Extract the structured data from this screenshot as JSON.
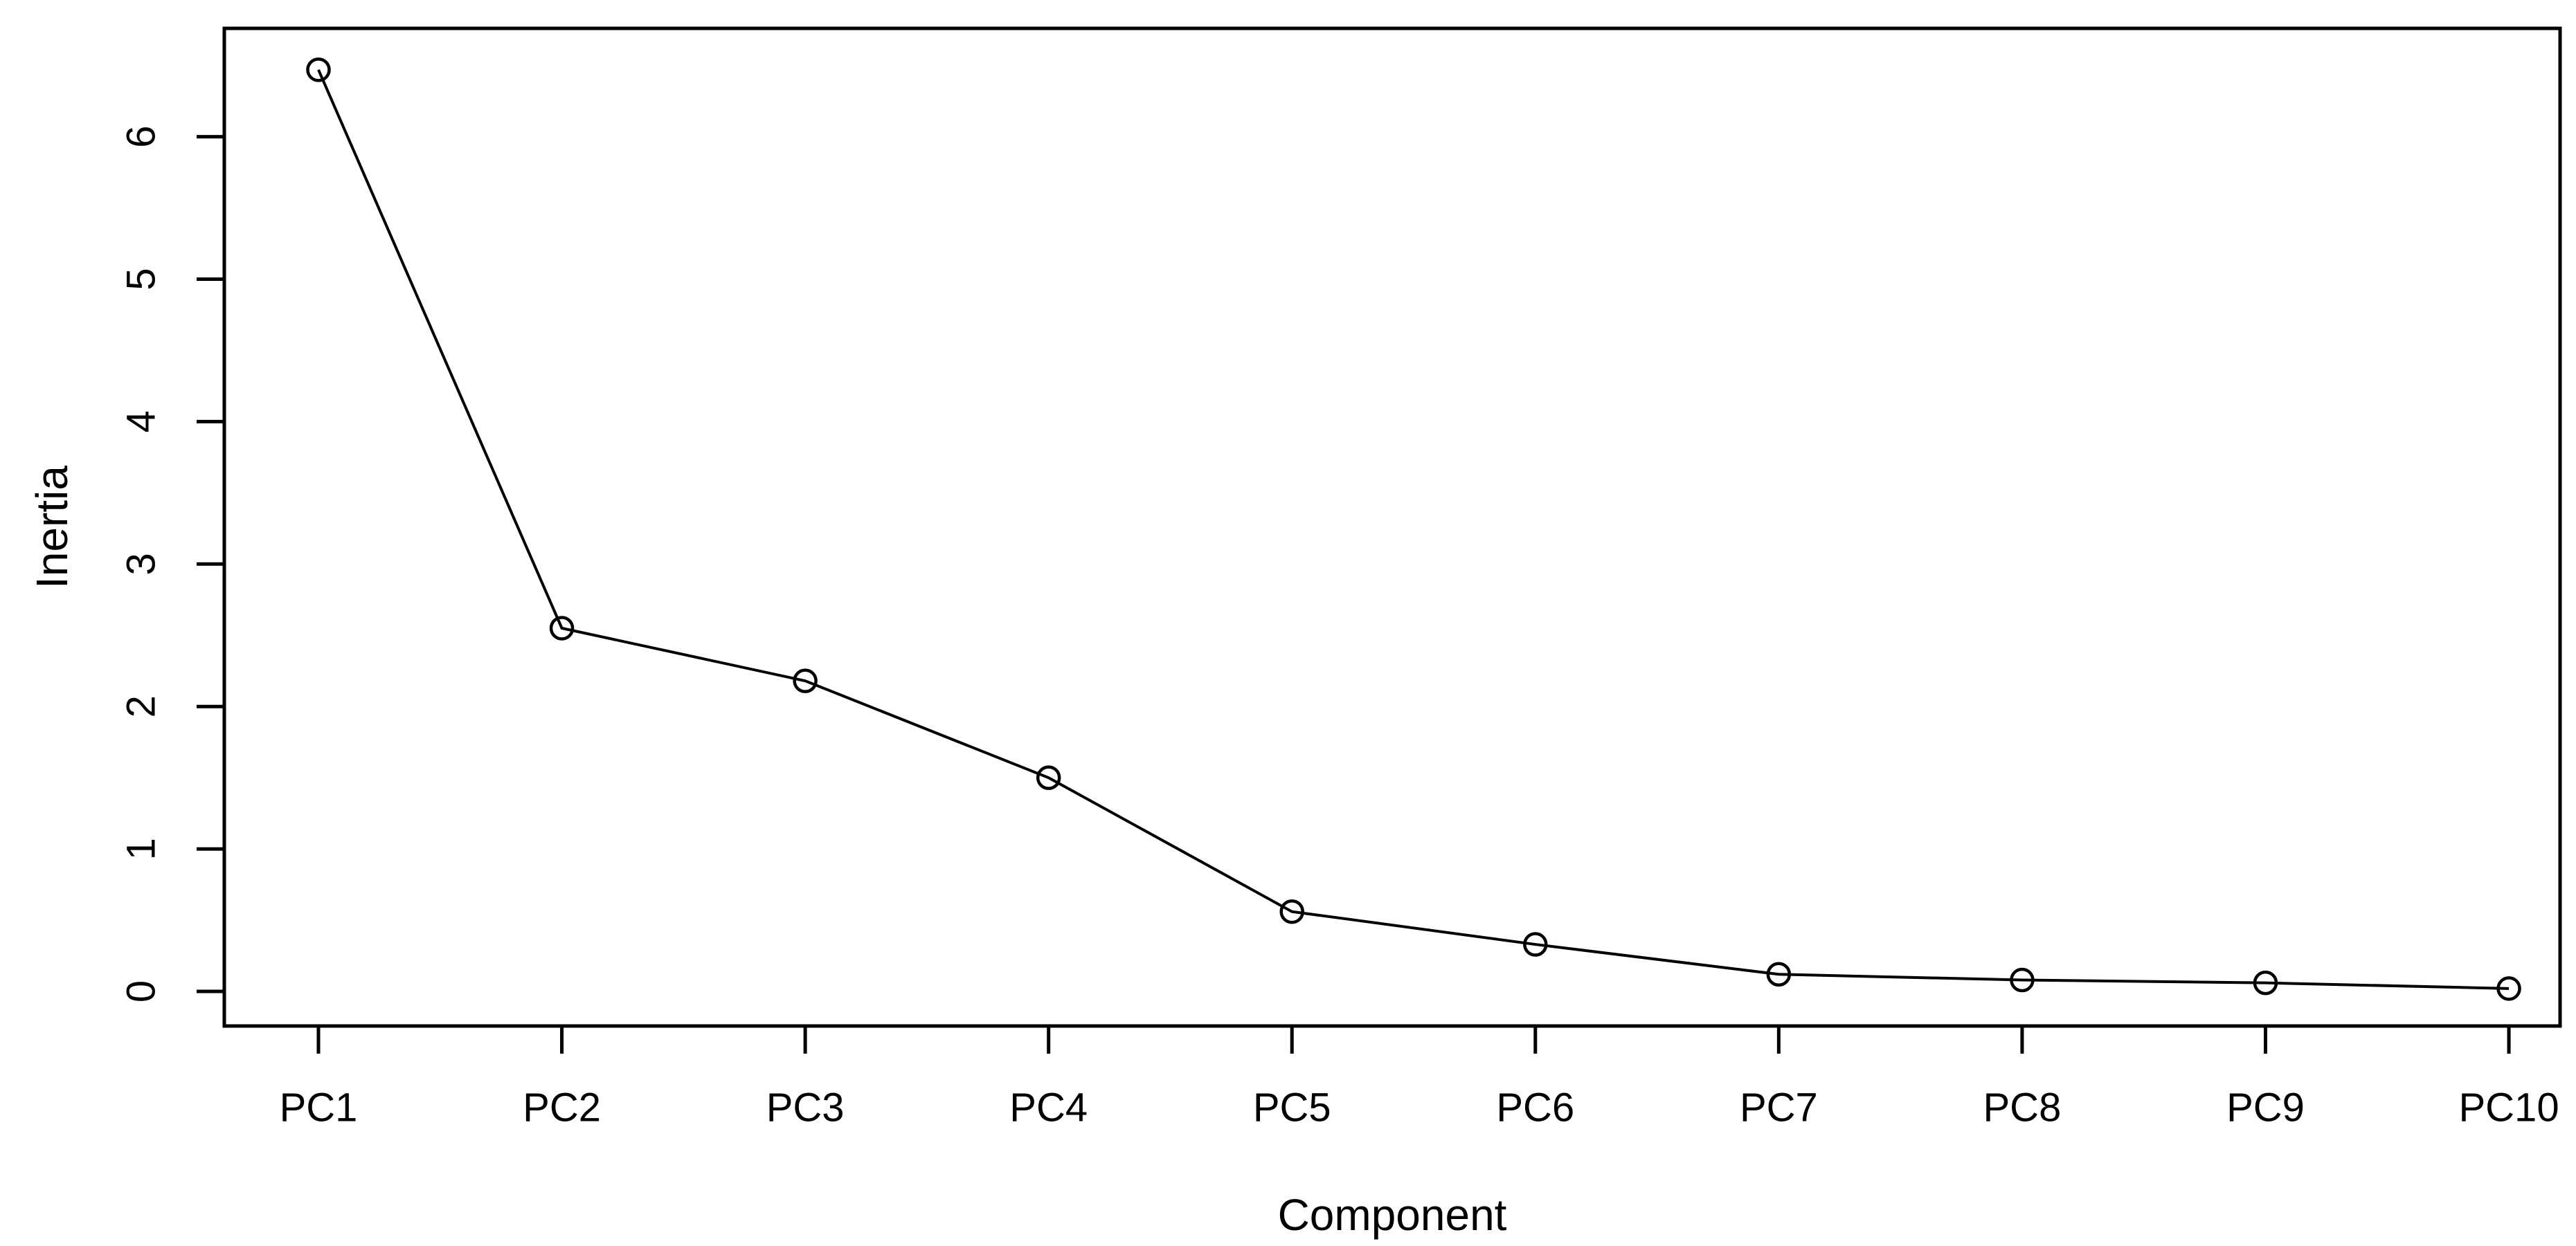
{
  "chart": {
    "background_color": "#ffffff",
    "foreground_color": "#000000"
  },
  "chart_data": {
    "type": "line",
    "title": "",
    "xlabel": "Component",
    "ylabel": "Inertia",
    "categories": [
      "PC1",
      "PC2",
      "PC3",
      "PC4",
      "PC5",
      "PC6",
      "PC7",
      "PC8",
      "PC9",
      "PC10"
    ],
    "values": [
      6.47,
      2.55,
      2.18,
      1.5,
      0.56,
      0.33,
      0.12,
      0.08,
      0.06,
      0.02
    ],
    "yticks": [
      0,
      1,
      2,
      3,
      4,
      5,
      6
    ],
    "ylim": [
      -0.27,
      6.75
    ],
    "xlim": [
      0.61,
      10.21
    ],
    "grid": false,
    "legend": "none",
    "marker": "open-circle",
    "line_style": "solid",
    "line_color": "#000000",
    "marker_color": "#000000",
    "y_tick_label_rotation": -90
  }
}
